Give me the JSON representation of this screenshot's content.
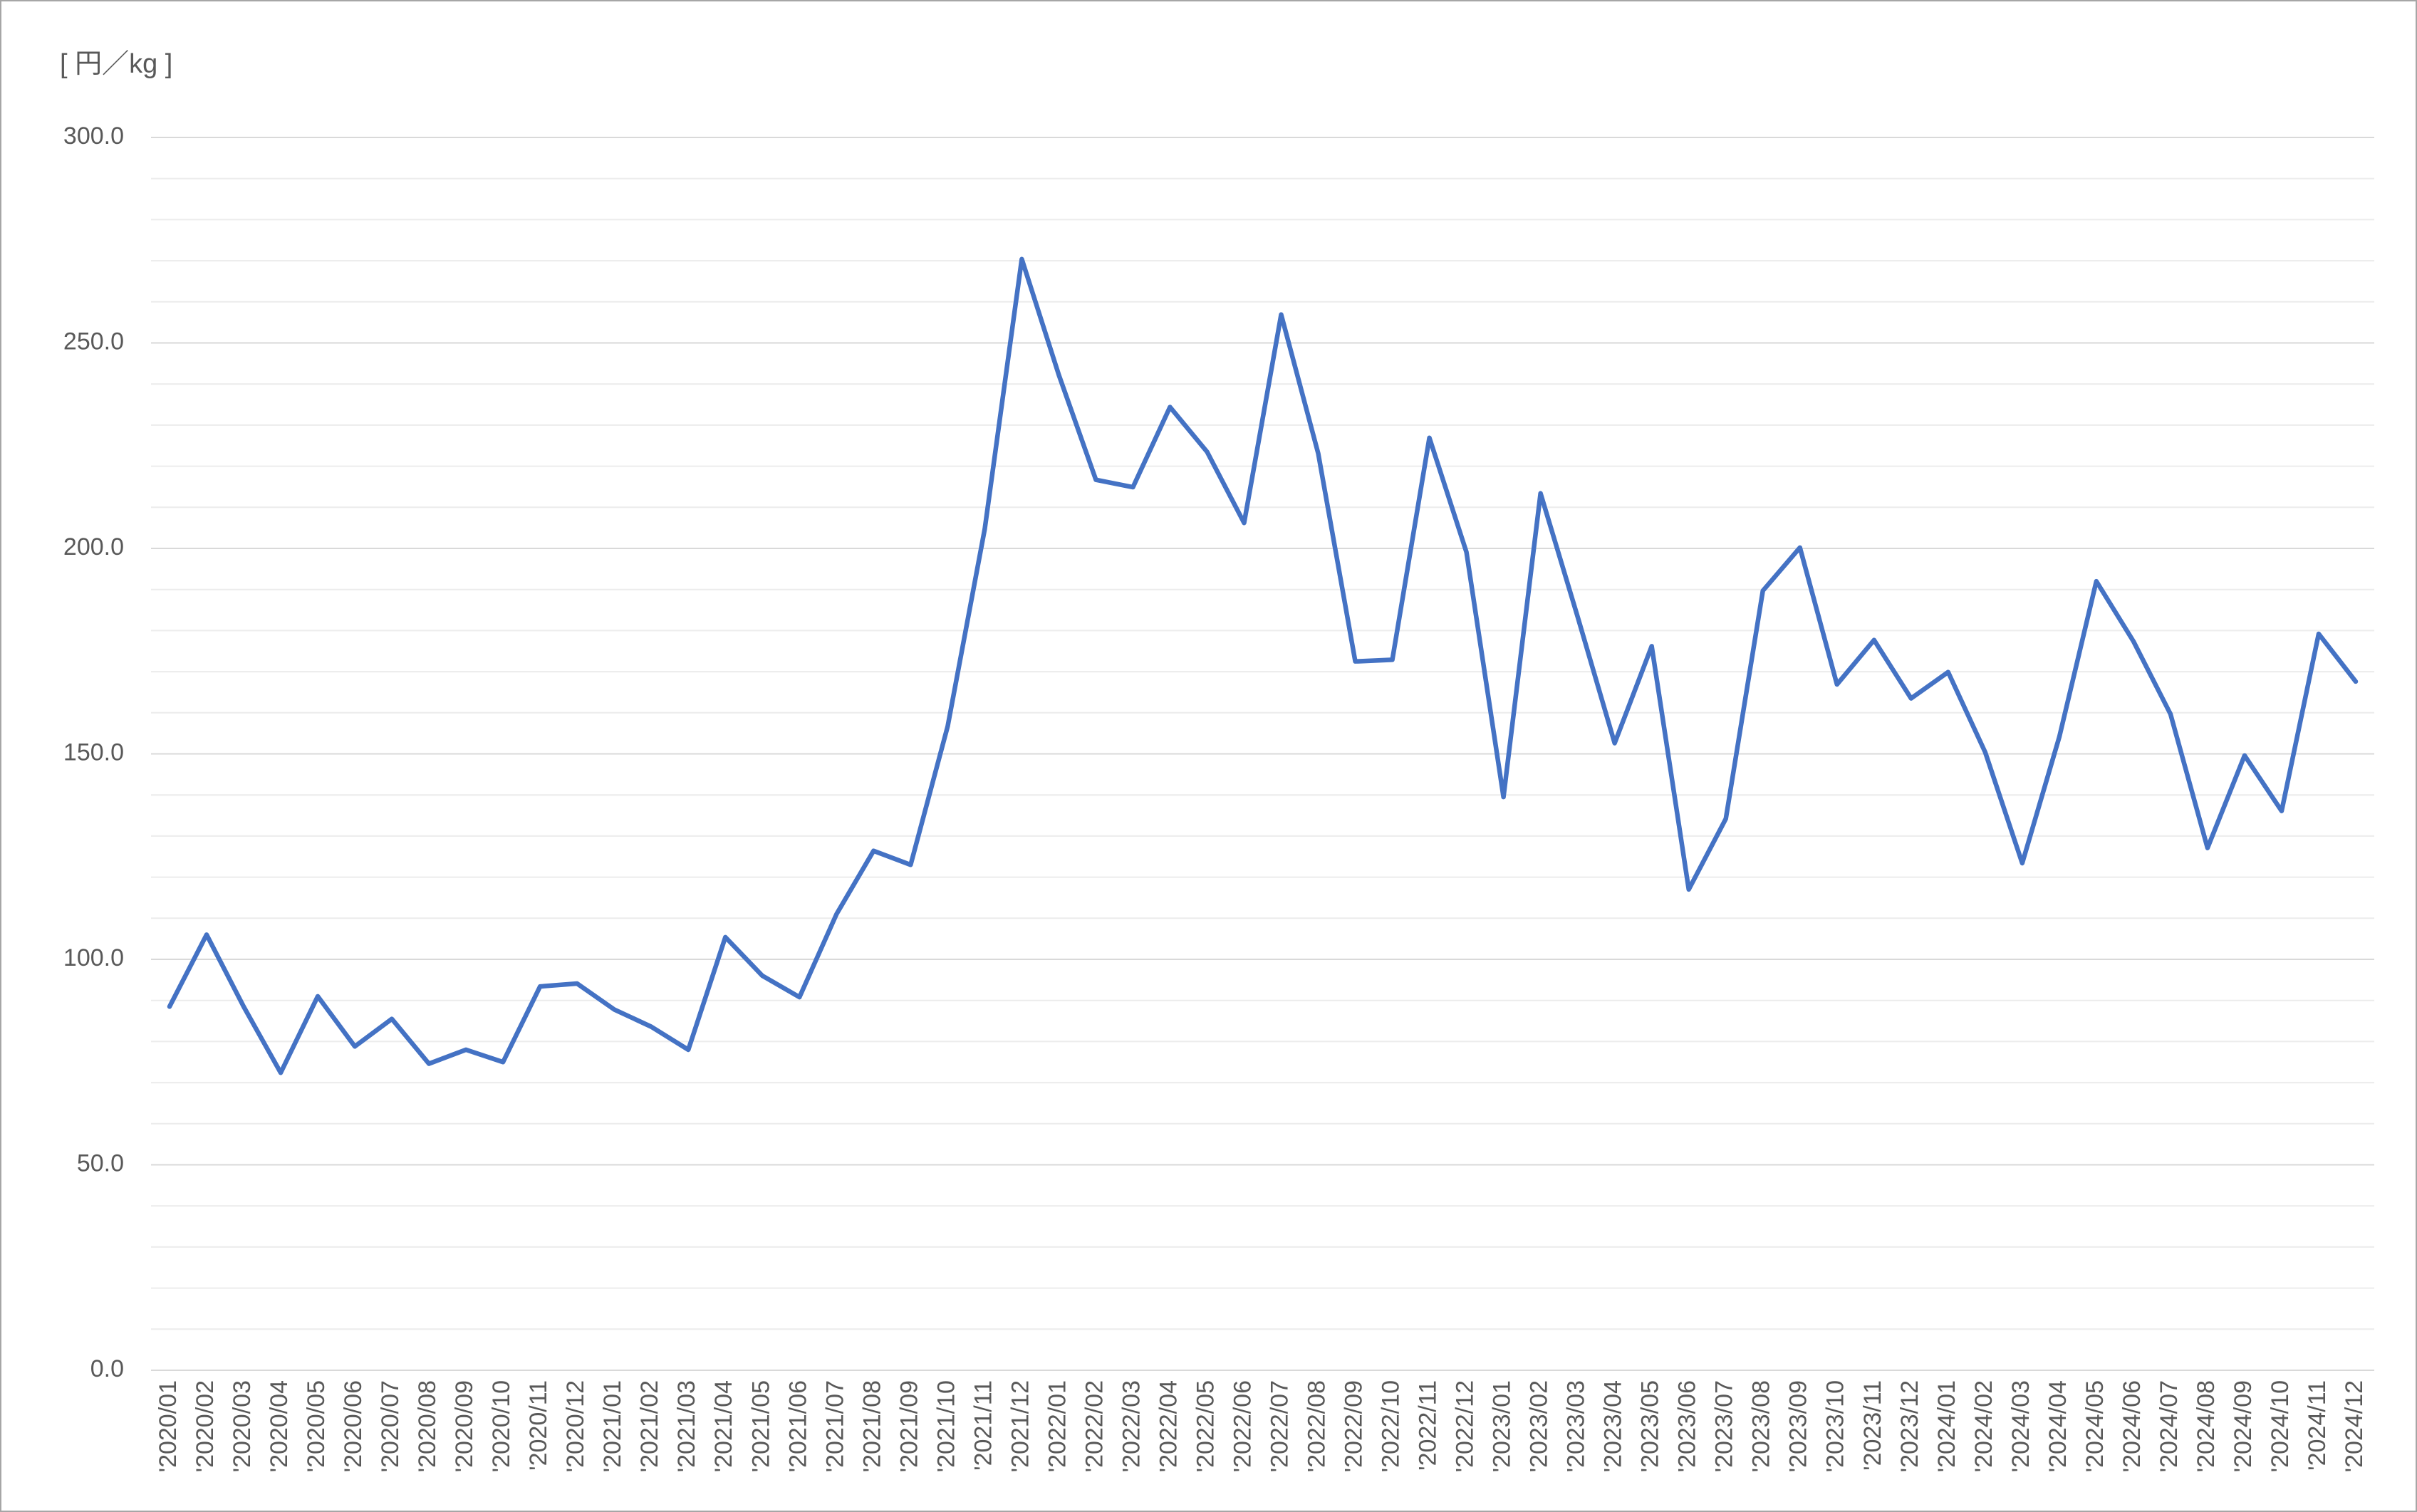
{
  "chart_data": {
    "type": "line",
    "y_label": "[ 円／kg ]",
    "categories": [
      "'2020/01",
      "'2020/02",
      "'2020/03",
      "'2020/04",
      "'2020/05",
      "'2020/06",
      "'2020/07",
      "'2020/08",
      "'2020/09",
      "'2020/10",
      "'2020/11",
      "'2020/12",
      "'2021/01",
      "'2021/02",
      "'2021/03",
      "'2021/04",
      "'2021/05",
      "'2021/06",
      "'2021/07",
      "'2021/08",
      "'2021/09",
      "'2021/10",
      "'2021/11",
      "'2021/12",
      "'2022/01",
      "'2022/02",
      "'2022/03",
      "'2022/04",
      "'2022/05",
      "'2022/06",
      "'2022/07",
      "'2022/08",
      "'2022/09",
      "'2022/10",
      "'2022/11",
      "'2022/12",
      "'2023/01",
      "'2023/02",
      "'2023/03",
      "'2023/04",
      "'2023/05",
      "'2023/06",
      "'2023/07",
      "'2023/08",
      "'2023/09",
      "'2023/10",
      "'2023/11",
      "'2023/12",
      "'2024/01",
      "'2024/02",
      "'2024/03",
      "'2024/04",
      "'2024/05",
      "'2024/06",
      "'2024/07",
      "'2024/08",
      "'2024/09",
      "'2024/10",
      "'2024/11",
      "'2024/12"
    ],
    "values": [
      88.5,
      106,
      88.5,
      72.4,
      91,
      78.8,
      85.5,
      74.6,
      78,
      75,
      93.4,
      94.1,
      87.8,
      83.6,
      78,
      105.4,
      96,
      90.8,
      111,
      126.4,
      123,
      156.7,
      204.7,
      270.4,
      242.2,
      216.7,
      214.9,
      234.4,
      223.5,
      206.2,
      256.9,
      223.1,
      172.5,
      172.9,
      226.9,
      199.1,
      139.5,
      213.4,
      183.4,
      152.6,
      176.2,
      117,
      134.2,
      189.7,
      200.2,
      166.9,
      177.7,
      163.5,
      169.9,
      150.4,
      123.4,
      154.1,
      192,
      177.4,
      159.7,
      127.1,
      149.6,
      136.1,
      179.2,
      167.6
    ],
    "color": "#4472c4",
    "ylim": [
      0,
      300
    ],
    "yticks": [
      {
        "value": 0,
        "label": "0.0"
      },
      {
        "value": 50,
        "label": "50.0"
      },
      {
        "value": 100,
        "label": "100.0"
      },
      {
        "value": 150,
        "label": "150.0"
      },
      {
        "value": 200,
        "label": "200.0"
      },
      {
        "value": 250,
        "label": "250.0"
      },
      {
        "value": 300,
        "label": "300.0"
      }
    ],
    "minor_grid_step": 10,
    "grid": true
  }
}
